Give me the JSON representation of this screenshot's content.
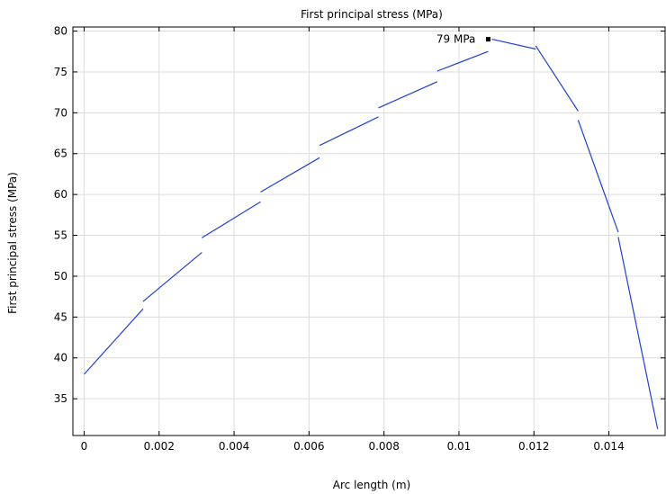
{
  "chart_data": {
    "type": "line",
    "title": "First principal stress (MPa)",
    "xlabel": "Arc length (m)",
    "ylabel": "First principal stress (MPa)",
    "xlim": [
      -0.0003,
      0.0155
    ],
    "ylim": [
      30.5,
      80.5
    ],
    "xticks": [
      0,
      0.002,
      0.004,
      0.006,
      0.008,
      0.01,
      0.012,
      0.014
    ],
    "xtick_labels": [
      "0",
      "0.002",
      "0.004",
      "0.006",
      "0.008",
      "0.01",
      "0.012",
      "0.014"
    ],
    "yticks": [
      35,
      40,
      45,
      50,
      55,
      60,
      65,
      70,
      75,
      80
    ],
    "ytick_labels": [
      "35",
      "40",
      "45",
      "50",
      "55",
      "60",
      "65",
      "70",
      "75",
      "80"
    ],
    "grid": true,
    "line_color": "#1f3fdc",
    "series": [
      {
        "segments": [
          [
            [
              0.0,
              38.0
            ],
            [
              0.00157,
              46.0
            ]
          ],
          [
            [
              0.00157,
              46.9
            ],
            [
              0.00314,
              52.9
            ]
          ],
          [
            [
              0.00314,
              54.7
            ],
            [
              0.00471,
              59.1
            ]
          ],
          [
            [
              0.00471,
              60.3
            ],
            [
              0.00628,
              64.5
            ]
          ],
          [
            [
              0.00628,
              66.0
            ],
            [
              0.00785,
              69.5
            ]
          ],
          [
            [
              0.00785,
              70.6
            ],
            [
              0.00942,
              73.8
            ]
          ],
          [
            [
              0.00942,
              75.1
            ],
            [
              0.01078,
              77.5
            ]
          ],
          [
            [
              0.01088,
              79.0
            ],
            [
              0.01205,
              77.8
            ]
          ],
          [
            [
              0.01205,
              78.2
            ],
            [
              0.01318,
              70.2
            ]
          ],
          [
            [
              0.01318,
              69.1
            ],
            [
              0.01425,
              55.4
            ]
          ],
          [
            [
              0.01425,
              54.8
            ],
            [
              0.0153,
              31.3
            ]
          ]
        ]
      }
    ],
    "annotation": {
      "x": 0.01078,
      "y": 79.0,
      "label": "79 MPa"
    }
  }
}
